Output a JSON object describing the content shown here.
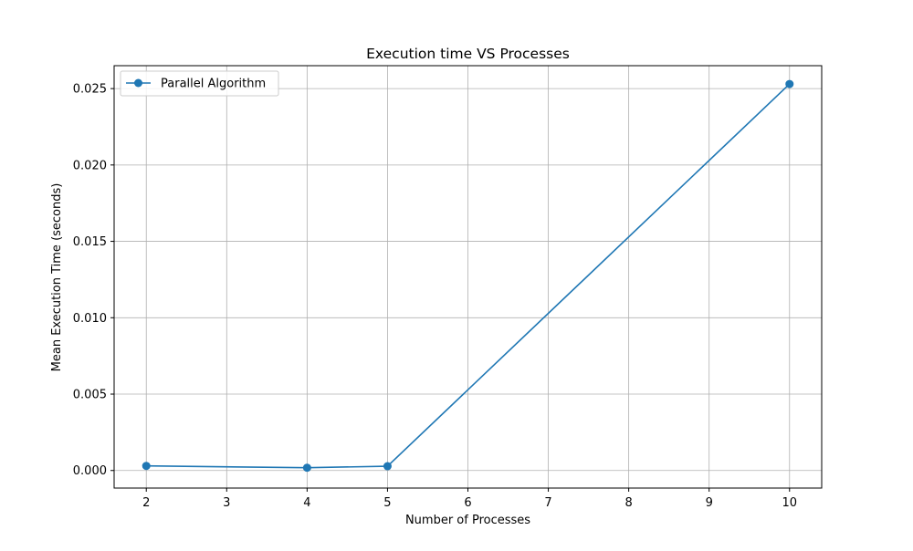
{
  "chart_data": {
    "type": "line",
    "title": "Execution time VS Processes",
    "xlabel": "Number of Processes",
    "ylabel": "Mean Execution Time (seconds)",
    "xlim": [
      1.6,
      10.4
    ],
    "ylim": [
      -0.00115,
      0.0265
    ],
    "x_ticks": [
      2,
      3,
      4,
      5,
      6,
      7,
      8,
      9,
      10
    ],
    "x_tick_labels": [
      "2",
      "3",
      "4",
      "5",
      "6",
      "7",
      "8",
      "9",
      "10"
    ],
    "y_ticks": [
      0.0,
      0.005,
      0.01,
      0.015,
      0.02,
      0.025
    ],
    "y_tick_labels": [
      "0.000",
      "0.005",
      "0.010",
      "0.015",
      "0.020",
      "0.025"
    ],
    "grid": true,
    "legend_position": "top-left",
    "series": [
      {
        "name": "Parallel Algorithm",
        "color": "#1f77b4",
        "marker": "circle",
        "x": [
          2,
          4,
          5,
          10
        ],
        "y": [
          0.0003,
          0.00018,
          0.00028,
          0.0253
        ]
      }
    ]
  }
}
